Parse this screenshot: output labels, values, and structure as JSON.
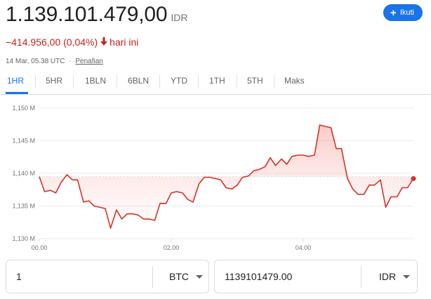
{
  "header": {
    "price": "1.139.101.479,00",
    "currency": "IDR",
    "follow_label": "Ikuti"
  },
  "change": {
    "value": "−414.956,00 (0,04%)",
    "suffix": "hari ini",
    "arrow_icon": "arrow-down-icon",
    "color": "#c5221f"
  },
  "meta": {
    "timestamp": "14 Mar, 05.38 UTC",
    "separator": "·",
    "disclaimer": "Penafian"
  },
  "tabs": [
    {
      "label": "1HR",
      "active": true
    },
    {
      "label": "5HR"
    },
    {
      "label": "1BLN"
    },
    {
      "label": "6BLN"
    },
    {
      "label": "YTD"
    },
    {
      "label": "1TH"
    },
    {
      "label": "5TH"
    },
    {
      "label": "Maks"
    }
  ],
  "chart_data": {
    "type": "area",
    "line_color": "#d93025",
    "ylim": [
      1130,
      1150
    ],
    "y_ticks": [
      1130,
      1135,
      1140,
      1145,
      1150
    ],
    "y_tick_labels": [
      "1,130 M",
      "1,135 M",
      "1,140 M",
      "1,145 M",
      "1,150 M"
    ],
    "xlim": [
      0,
      5.67
    ],
    "x_ticks": [
      0,
      2,
      4
    ],
    "x_tick_labels": [
      "00.00",
      "02.00",
      "04.00"
    ],
    "grid": true,
    "series": [
      {
        "x": [
          0,
          0.08,
          0.17,
          0.25,
          0.33,
          0.42,
          0.5,
          0.58,
          0.67,
          0.75,
          0.83,
          0.92,
          1.0,
          1.08,
          1.17,
          1.25,
          1.33,
          1.42,
          1.5,
          1.58,
          1.67,
          1.75,
          1.83,
          1.92,
          2.0,
          2.08,
          2.17,
          2.25,
          2.33,
          2.42,
          2.5,
          2.58,
          2.67,
          2.75,
          2.83,
          2.92,
          3.0,
          3.08,
          3.17,
          3.25,
          3.33,
          3.42,
          3.5,
          3.58,
          3.67,
          3.75,
          3.83,
          3.92,
          4.0,
          4.08,
          4.17,
          4.25,
          4.33,
          4.42,
          4.5,
          4.58,
          4.67,
          4.75,
          4.83,
          4.92,
          5.0,
          5.08,
          5.17,
          5.25,
          5.33,
          5.42,
          5.5,
          5.58,
          5.67
        ],
        "values": [
          1139.5,
          1137.2,
          1137.4,
          1137.0,
          1138.6,
          1139.8,
          1139.0,
          1139.0,
          1135.6,
          1135.8,
          1135.0,
          1134.8,
          1134.6,
          1131.6,
          1134.4,
          1133.0,
          1133.8,
          1133.8,
          1133.6,
          1133.0,
          1133.0,
          1132.8,
          1135.4,
          1135.4,
          1137.0,
          1137.2,
          1137.0,
          1136.0,
          1135.6,
          1138.4,
          1139.4,
          1139.4,
          1139.2,
          1139.0,
          1137.8,
          1137.6,
          1138.2,
          1139.4,
          1139.6,
          1140.4,
          1140.6,
          1141.0,
          1142.4,
          1141.2,
          1142.2,
          1141.4,
          1142.6,
          1142.8,
          1142.8,
          1142.6,
          1142.8,
          1147.4,
          1147.2,
          1147.0,
          1143.8,
          1143.8,
          1139.2,
          1137.6,
          1136.8,
          1136.8,
          1138.2,
          1138.2,
          1139.0,
          1134.8,
          1136.4,
          1136.4,
          1137.8,
          1137.8,
          1139.2
        ]
      }
    ]
  },
  "converter": {
    "left": {
      "value": "1",
      "unit": "BTC"
    },
    "right": {
      "value": "1139101479.00",
      "unit": "IDR"
    }
  }
}
